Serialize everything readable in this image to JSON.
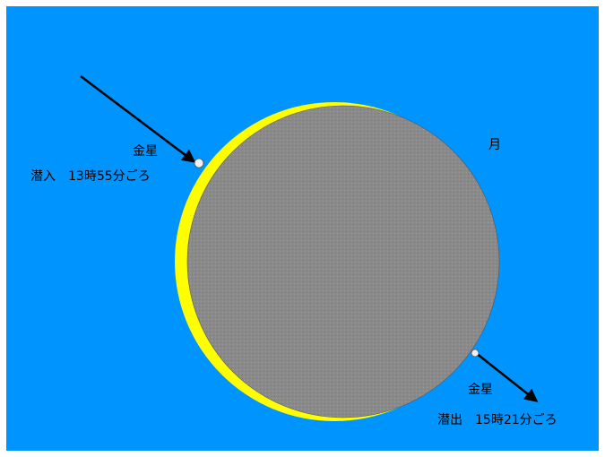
{
  "colors": {
    "sky": "#0094ff",
    "moon": "#8a8a8a",
    "crescent": "#ffff00",
    "venus": "#f0f0f0",
    "arrow": "#000000"
  },
  "moon": {
    "label": "月"
  },
  "venus_ingress": {
    "name": "金星",
    "time": "潜入　13時55分ごろ"
  },
  "venus_egress": {
    "name": "金星",
    "time": "潜出　15時21分ごろ"
  }
}
